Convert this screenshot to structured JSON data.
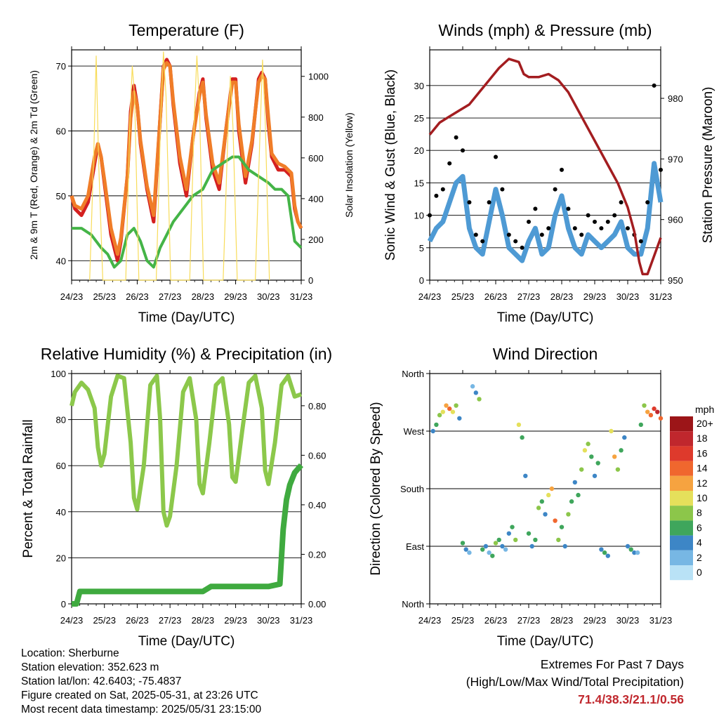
{
  "footer": {
    "location": "Location: Sherburne",
    "elevation": "Station elevation: 352.623 m",
    "latlon": "Station lat/lon: 42.6403; -75.4837",
    "created": "Figure created on Sat, 2025-05-31, at 23:26 UTC",
    "recent": "Most recent data timestamp: 2025/05/31 23:15:00",
    "extremes_title": "Extremes For Past 7 Days",
    "extremes_subtitle": "(High/Low/Max Wind/Total Precipitation)",
    "extremes_values": "71.4/38.3/21.1/0.56"
  },
  "colors": {
    "temp2m": "#d42020",
    "temp9m": "#f07d28",
    "dewpoint": "#44b447",
    "solar": "#f8dc5a",
    "wind": "#4e9ad4",
    "gust": "#000000",
    "pressure": "#a31d20",
    "rh": "#8cc84b",
    "rain": "#3faa3f"
  },
  "chart_data": [
    {
      "id": "temperature",
      "type": "line",
      "title": "Temperature (F)",
      "xlabel": "Time (Day/UTC)",
      "ylabel": "2m & 9m T (Red, Orange) & 2m Td (Green)",
      "y2label": "Solar Insolation (Yellow)",
      "x_ticks": [
        "24/23",
        "25/23",
        "26/23",
        "27/23",
        "28/23",
        "29/23",
        "30/23",
        "31/23"
      ],
      "xlim": [
        0,
        7
      ],
      "ylim": [
        37,
        72.5
      ],
      "y_ticks": [
        40,
        50,
        60,
        70
      ],
      "y2lim": [
        0,
        1130
      ],
      "y2_ticks": [
        0,
        200,
        400,
        600,
        800,
        1000
      ],
      "grid": "horizontal",
      "series": [
        {
          "key": "temp2m",
          "x": [
            0,
            0.1,
            0.3,
            0.5,
            0.7,
            0.8,
            0.9,
            1.0,
            1.2,
            1.4,
            1.5,
            1.7,
            1.8,
            1.9,
            2.0,
            2.1,
            2.3,
            2.5,
            2.7,
            2.8,
            2.9,
            3.0,
            3.1,
            3.3,
            3.5,
            3.7,
            3.9,
            4.0,
            4.1,
            4.3,
            4.5,
            4.7,
            4.9,
            5.0,
            5.1,
            5.3,
            5.5,
            5.7,
            5.8,
            5.9,
            6.0,
            6.1,
            6.3,
            6.5,
            6.7,
            6.8,
            6.9,
            7.0
          ],
          "y": [
            50,
            48,
            47,
            49,
            55,
            58,
            56,
            52,
            44,
            40,
            43,
            53,
            63,
            67,
            64,
            58,
            51,
            46,
            62,
            70,
            71,
            70,
            64,
            55,
            50,
            59,
            66,
            68,
            62,
            54,
            51,
            60,
            68,
            68,
            60,
            52,
            58,
            68,
            69,
            68,
            61,
            56,
            54,
            54,
            53,
            48,
            46,
            45
          ]
        },
        {
          "key": "temp9m",
          "x": [
            0,
            0.1,
            0.3,
            0.5,
            0.7,
            0.8,
            0.9,
            1.0,
            1.2,
            1.4,
            1.5,
            1.7,
            1.8,
            1.9,
            2.0,
            2.1,
            2.3,
            2.5,
            2.7,
            2.8,
            2.9,
            3.0,
            3.1,
            3.3,
            3.5,
            3.7,
            3.9,
            4.0,
            4.1,
            4.3,
            4.5,
            4.7,
            4.9,
            5.0,
            5.1,
            5.3,
            5.5,
            5.7,
            5.8,
            5.9,
            6.0,
            6.1,
            6.3,
            6.5,
            6.7,
            6.8,
            6.9,
            7.0
          ],
          "y": [
            50,
            48.5,
            48,
            50,
            56,
            58,
            56,
            52.5,
            45,
            41,
            43.5,
            53,
            62,
            66,
            64,
            58.5,
            51.5,
            47,
            62,
            69.5,
            70.5,
            70,
            64.5,
            56,
            51,
            59,
            65.5,
            67.5,
            62.5,
            55,
            52,
            60,
            67.5,
            67.5,
            61,
            53,
            58.5,
            67.5,
            68.5,
            68,
            62,
            56.5,
            55,
            54.5,
            53.5,
            48.5,
            46,
            45
          ]
        },
        {
          "key": "dewpoint",
          "x": [
            0,
            0.3,
            0.6,
            0.9,
            1.1,
            1.3,
            1.5,
            1.7,
            1.9,
            2.1,
            2.3,
            2.5,
            2.7,
            2.9,
            3.1,
            3.4,
            3.7,
            4.0,
            4.3,
            4.6,
            4.9,
            5.1,
            5.4,
            5.7,
            6.0,
            6.2,
            6.4,
            6.6,
            6.8,
            7.0
          ],
          "y": [
            45,
            45,
            44,
            42,
            41,
            39,
            40,
            44,
            45,
            43,
            40,
            39,
            42,
            44,
            46,
            48,
            50,
            51,
            54,
            55,
            56,
            56,
            54,
            53,
            52,
            51,
            51,
            50,
            43,
            42
          ]
        },
        {
          "key": "solar",
          "axis": "y2",
          "x": [
            0.55,
            0.68,
            0.75,
            0.82,
            0.95,
            1.65,
            1.78,
            1.85,
            1.92,
            2.05,
            2.58,
            2.72,
            2.8,
            2.88,
            3.02,
            3.6,
            3.74,
            3.82,
            3.9,
            4.02,
            4.62,
            4.76,
            4.84,
            4.92,
            5.05,
            5.6,
            5.74,
            5.82,
            5.9,
            6.03
          ],
          "y": [
            0,
            650,
            1100,
            600,
            0,
            0,
            800,
            1050,
            900,
            0,
            0,
            820,
            1120,
            900,
            0,
            0,
            800,
            1100,
            850,
            0,
            0,
            700,
            1000,
            750,
            0,
            0,
            700,
            1080,
            800,
            0
          ]
        }
      ]
    },
    {
      "id": "winds",
      "type": "scatter",
      "title": "Winds (mph) & Pressure (mb)",
      "xlabel": "Time (Day/UTC)",
      "ylabel": "Sonic Wind & Gust (Blue, Black)",
      "y2label": "Station Pressure (Maroon)",
      "x_ticks": [
        "24/23",
        "25/23",
        "26/23",
        "27/23",
        "28/23",
        "29/23",
        "30/23",
        "31/23"
      ],
      "xlim": [
        0,
        7
      ],
      "ylim": [
        0,
        35.5
      ],
      "y_ticks": [
        0,
        5,
        10,
        15,
        20,
        25,
        30
      ],
      "y2lim": [
        950,
        988
      ],
      "y2_ticks": [
        950,
        960,
        970,
        980
      ],
      "grid": "horizontal",
      "series": [
        {
          "key": "wind",
          "x": [
            0,
            0.2,
            0.4,
            0.6,
            0.8,
            1.0,
            1.2,
            1.4,
            1.6,
            1.8,
            2.0,
            2.2,
            2.4,
            2.6,
            2.8,
            3.0,
            3.2,
            3.4,
            3.6,
            3.8,
            4.0,
            4.2,
            4.4,
            4.6,
            4.8,
            5.0,
            5.2,
            5.4,
            5.6,
            5.8,
            6.0,
            6.2,
            6.4,
            6.6,
            6.8,
            7.0
          ],
          "y": [
            6,
            8,
            9,
            12,
            15,
            16,
            8,
            5,
            4,
            9,
            14,
            10,
            5,
            4,
            3,
            6,
            8,
            4,
            5,
            10,
            13,
            8,
            5,
            4,
            7,
            6,
            5,
            6,
            7,
            9,
            5,
            4,
            4,
            8,
            18,
            12
          ]
        },
        {
          "key": "gust",
          "x": [
            0,
            0.2,
            0.4,
            0.6,
            0.8,
            1.0,
            1.2,
            1.4,
            1.6,
            1.8,
            2.0,
            2.2,
            2.4,
            2.6,
            2.8,
            3.0,
            3.2,
            3.4,
            3.6,
            3.8,
            4.0,
            4.2,
            4.4,
            4.6,
            4.8,
            5.0,
            5.2,
            5.4,
            5.6,
            5.8,
            6.0,
            6.2,
            6.4,
            6.6,
            6.8,
            7.0
          ],
          "y": [
            10,
            13,
            14,
            18,
            22,
            20,
            12,
            7,
            6,
            12,
            19,
            14,
            7,
            6,
            5,
            9,
            11,
            7,
            8,
            14,
            17,
            11,
            8,
            7,
            10,
            9,
            8,
            9,
            10,
            12,
            8,
            7,
            6,
            12,
            30,
            17
          ]
        },
        {
          "key": "pressure",
          "axis": "y2",
          "x": [
            0,
            0.3,
            0.6,
            0.9,
            1.2,
            1.5,
            1.8,
            2.1,
            2.4,
            2.7,
            2.85,
            3.0,
            3.3,
            3.6,
            3.9,
            4.2,
            4.5,
            4.8,
            5.1,
            5.4,
            5.7,
            6.0,
            6.2,
            6.35,
            6.45,
            6.6,
            6.8,
            7.0
          ],
          "y": [
            974,
            976,
            977,
            978,
            979,
            981,
            983,
            985,
            986.5,
            986,
            984,
            983.5,
            983.5,
            984,
            983,
            981,
            978,
            975,
            972,
            969,
            966,
            962,
            958,
            953,
            951,
            951,
            954,
            957
          ]
        }
      ]
    },
    {
      "id": "humidity",
      "type": "line",
      "title": "Relative Humidity (%) & Precipitation (in)",
      "xlabel": "Time (Day/UTC)",
      "ylabel": "Percent & Total Rainfall",
      "x_ticks": [
        "24/23",
        "25/23",
        "26/23",
        "27/23",
        "28/23",
        "29/23",
        "30/23",
        "31/23"
      ],
      "xlim": [
        0,
        7
      ],
      "ylim": [
        0,
        100
      ],
      "y_ticks": [
        0,
        20,
        40,
        60,
        80,
        100
      ],
      "y2lim": [
        0,
        0.93
      ],
      "y2_ticks": [
        "0.00",
        "0.20",
        "0.40",
        "0.60",
        "0.80"
      ],
      "grid": "horizontal",
      "series": [
        {
          "key": "rh",
          "x": [
            0,
            0.1,
            0.3,
            0.5,
            0.7,
            0.8,
            0.9,
            1.0,
            1.2,
            1.4,
            1.6,
            1.8,
            1.9,
            2.0,
            2.2,
            2.4,
            2.6,
            2.7,
            2.8,
            2.9,
            3.0,
            3.2,
            3.4,
            3.6,
            3.8,
            3.9,
            4.0,
            4.2,
            4.4,
            4.6,
            4.8,
            4.9,
            5.0,
            5.2,
            5.4,
            5.6,
            5.8,
            5.9,
            6.0,
            6.2,
            6.4,
            6.6,
            6.8,
            7.0
          ],
          "y": [
            86,
            92,
            96,
            93,
            85,
            68,
            60,
            65,
            90,
            99,
            98,
            70,
            46,
            41,
            60,
            95,
            99,
            80,
            40,
            34,
            38,
            60,
            92,
            98,
            80,
            52,
            48,
            70,
            95,
            98,
            78,
            55,
            53,
            75,
            96,
            99,
            85,
            58,
            52,
            70,
            95,
            99,
            90,
            91
          ]
        },
        {
          "key": "rain",
          "axis": "y2",
          "x": [
            0,
            0.15,
            0.25,
            1.0,
            2.0,
            3.0,
            4.0,
            4.25,
            5.0,
            6.0,
            6.35,
            6.45,
            6.55,
            6.65,
            6.8,
            7.0
          ],
          "y": [
            0,
            0,
            0.05,
            0.05,
            0.05,
            0.05,
            0.05,
            0.07,
            0.07,
            0.07,
            0.08,
            0.3,
            0.42,
            0.48,
            0.53,
            0.56
          ]
        }
      ]
    },
    {
      "id": "direction",
      "type": "scatter",
      "title": "Wind Direction",
      "xlabel": "Time (Day/UTC)",
      "ylabel": "Direction (Colored By Speed)",
      "x_ticks": [
        "24/23",
        "25/23",
        "26/23",
        "27/23",
        "28/23",
        "29/23",
        "30/23",
        "31/23"
      ],
      "xlim": [
        0,
        7
      ],
      "ylim": [
        0,
        360
      ],
      "y_ticks": [
        "North",
        "East",
        "South",
        "West",
        "North"
      ],
      "grid": "horizontal",
      "legend": {
        "title": "mph",
        "labels": [
          "20+",
          "18",
          "16",
          "14",
          "12",
          "10",
          "8",
          "6",
          "4",
          "2",
          "0"
        ],
        "colors": [
          "#9c1518",
          "#c0272d",
          "#de3a2c",
          "#f0672e",
          "#f6a340",
          "#e5e05b",
          "#8cc64a",
          "#3fa65c",
          "#3d86c6",
          "#77b7e4",
          "#b9e2f6"
        ]
      },
      "x": [
        0.1,
        0.2,
        0.3,
        0.4,
        0.5,
        0.6,
        0.7,
        0.8,
        0.9,
        1.0,
        1.1,
        1.2,
        1.3,
        1.4,
        1.5,
        1.6,
        1.7,
        1.8,
        1.9,
        2.0,
        2.1,
        2.2,
        2.3,
        2.4,
        2.5,
        2.6,
        2.7,
        2.8,
        2.9,
        3.0,
        3.1,
        3.2,
        3.3,
        3.4,
        3.5,
        3.6,
        3.7,
        3.8,
        3.9,
        4.0,
        4.1,
        4.2,
        4.3,
        4.4,
        4.5,
        4.6,
        4.7,
        4.8,
        4.9,
        5.0,
        5.1,
        5.2,
        5.3,
        5.4,
        5.5,
        5.6,
        5.7,
        5.8,
        5.9,
        6.0,
        6.1,
        6.2,
        6.3,
        6.4,
        6.5,
        6.6,
        6.7,
        6.8,
        6.9,
        7.0
      ],
      "y": [
        270,
        280,
        295,
        300,
        310,
        305,
        300,
        310,
        290,
        95,
        85,
        80,
        340,
        330,
        320,
        85,
        90,
        80,
        75,
        95,
        100,
        90,
        85,
        110,
        120,
        100,
        280,
        260,
        200,
        110,
        90,
        100,
        150,
        160,
        140,
        170,
        180,
        130,
        100,
        120,
        90,
        140,
        160,
        190,
        170,
        210,
        240,
        250,
        230,
        200,
        220,
        85,
        80,
        75,
        270,
        230,
        210,
        240,
        260,
        90,
        85,
        80,
        80,
        280,
        310,
        300,
        295,
        305,
        300,
        290
      ],
      "speed": [
        4,
        6,
        8,
        10,
        12,
        14,
        10,
        8,
        4,
        6,
        4,
        2,
        2,
        4,
        8,
        6,
        4,
        2,
        6,
        8,
        6,
        4,
        2,
        4,
        6,
        8,
        10,
        6,
        4,
        6,
        4,
        6,
        8,
        6,
        4,
        10,
        12,
        14,
        8,
        6,
        4,
        8,
        6,
        4,
        6,
        8,
        10,
        8,
        6,
        4,
        6,
        4,
        6,
        4,
        10,
        12,
        8,
        6,
        4,
        4,
        6,
        4,
        2,
        6,
        8,
        12,
        14,
        16,
        18,
        14
      ]
    }
  ]
}
